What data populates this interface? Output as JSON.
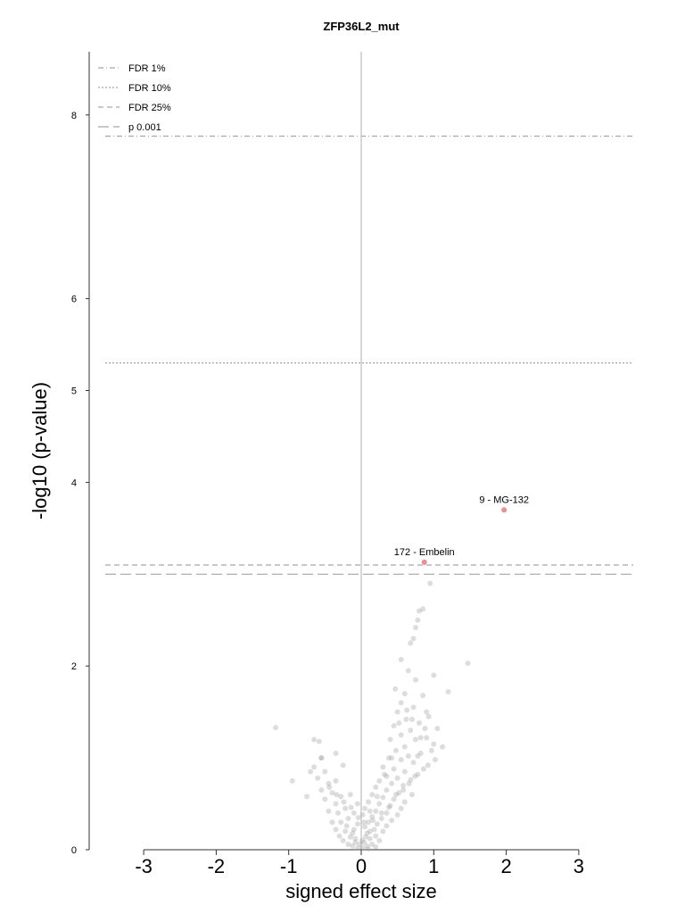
{
  "chart_data": {
    "type": "scatter",
    "title": "ZFP36L2_mut",
    "xlabel": "signed effect size",
    "ylabel": "-log10 (p-value)",
    "xlim": [
      -3.0,
      3.0
    ],
    "ylim": [
      0,
      8
    ],
    "xticks": [
      "-3",
      "-2",
      "-1",
      "0",
      "1",
      "2",
      "3"
    ],
    "yticks": [
      "0",
      "2",
      "4",
      "5",
      "6",
      "8"
    ],
    "x_tick_values": [
      -3,
      -2,
      -1,
      0,
      1,
      2,
      3
    ],
    "y_tick_values": [
      0,
      2,
      4,
      5,
      6,
      8
    ],
    "colors": {
      "points": "#9e9e9e",
      "highlight": "#f08080",
      "threshold_lines": "#a6a6a6",
      "zero_line": "#cccccc",
      "axis": "#333333"
    },
    "legend": {
      "placement": "top-left",
      "entries": [
        {
          "label": "FDR 1%",
          "style": "dash-dot"
        },
        {
          "label": "FDR 10%",
          "style": "dotted"
        },
        {
          "label": "FDR 25%",
          "style": "dashed"
        },
        {
          "label": "p 0.001",
          "style": "long-dashed"
        }
      ]
    },
    "thresholds": [
      {
        "label": "FDR 1%",
        "y": 7.77,
        "style": "dash-dot"
      },
      {
        "label": "FDR 10%",
        "y": 5.3,
        "style": "dotted"
      },
      {
        "label": "FDR 25%",
        "y": 3.1,
        "style": "dashed"
      },
      {
        "label": "p 0.001",
        "y": 3.0,
        "style": "long-dashed"
      }
    ],
    "highlighted": [
      {
        "label": "9 - MG-132",
        "x": 1.97,
        "y": 3.7
      },
      {
        "label": "172 - Embelin",
        "x": 0.87,
        "y": 3.13
      }
    ],
    "points": [
      [
        0.95,
        2.9
      ],
      [
        0.85,
        2.62
      ],
      [
        0.8,
        2.6
      ],
      [
        0.78,
        2.5
      ],
      [
        0.75,
        2.42
      ],
      [
        0.72,
        2.3
      ],
      [
        0.68,
        2.25
      ],
      [
        1.47,
        2.03
      ],
      [
        0.55,
        2.07
      ],
      [
        0.65,
        1.95
      ],
      [
        0.75,
        1.85
      ],
      [
        1.0,
        1.9
      ],
      [
        1.2,
        1.72
      ],
      [
        0.47,
        1.75
      ],
      [
        0.6,
        1.7
      ],
      [
        0.85,
        1.68
      ],
      [
        0.55,
        1.6
      ],
      [
        0.72,
        1.55
      ],
      [
        0.9,
        1.5
      ],
      [
        0.5,
        1.5
      ],
      [
        0.62,
        1.42
      ],
      [
        0.8,
        1.38
      ],
      [
        1.05,
        1.32
      ],
      [
        0.45,
        1.35
      ],
      [
        0.68,
        1.3
      ],
      [
        0.55,
        1.25
      ],
      [
        0.9,
        1.22
      ],
      [
        0.75,
        1.2
      ],
      [
        1.0,
        1.15
      ],
      [
        0.4,
        1.2
      ],
      [
        0.6,
        1.12
      ],
      [
        0.48,
        1.08
      ],
      [
        0.82,
        1.05
      ],
      [
        0.65,
        1.02
      ],
      [
        0.38,
        1.0
      ],
      [
        0.55,
        0.98
      ],
      [
        0.72,
        0.95
      ],
      [
        0.92,
        0.92
      ],
      [
        0.3,
        0.9
      ],
      [
        0.45,
        0.88
      ],
      [
        0.6,
        0.85
      ],
      [
        0.78,
        0.82
      ],
      [
        0.35,
        0.8
      ],
      [
        0.5,
        0.78
      ],
      [
        0.68,
        0.76
      ],
      [
        0.25,
        0.75
      ],
      [
        0.42,
        0.72
      ],
      [
        0.58,
        0.7
      ],
      [
        0.2,
        0.68
      ],
      [
        0.35,
        0.65
      ],
      [
        0.52,
        0.62
      ],
      [
        0.7,
        0.6
      ],
      [
        0.15,
        0.6
      ],
      [
        0.3,
        0.57
      ],
      [
        0.45,
        0.55
      ],
      [
        0.6,
        0.52
      ],
      [
        0.1,
        0.52
      ],
      [
        0.25,
        0.5
      ],
      [
        0.4,
        0.48
      ],
      [
        0.55,
        0.45
      ],
      [
        0.05,
        0.45
      ],
      [
        0.2,
        0.42
      ],
      [
        0.35,
        0.4
      ],
      [
        0.5,
        0.38
      ],
      [
        0.02,
        0.38
      ],
      [
        0.15,
        0.36
      ],
      [
        0.28,
        0.34
      ],
      [
        0.42,
        0.32
      ],
      [
        0.1,
        0.3
      ],
      [
        0.22,
        0.28
      ],
      [
        0.35,
        0.26
      ],
      [
        0.05,
        0.25
      ],
      [
        0.18,
        0.22
      ],
      [
        0.3,
        0.2
      ],
      [
        0.08,
        0.18
      ],
      [
        0.2,
        0.15
      ],
      [
        0.12,
        0.12
      ],
      [
        0.25,
        0.1
      ],
      [
        0.04,
        0.08
      ],
      [
        0.15,
        0.06
      ],
      [
        0.08,
        0.04
      ],
      [
        0.2,
        0.03
      ],
      [
        0.1,
        0.01
      ],
      [
        0.02,
        0.02
      ],
      [
        -0.05,
        0.02
      ],
      [
        -0.12,
        0.04
      ],
      [
        -0.08,
        0.08
      ],
      [
        -0.18,
        0.06
      ],
      [
        -0.25,
        0.1
      ],
      [
        -0.15,
        0.14
      ],
      [
        -0.3,
        0.15
      ],
      [
        -0.22,
        0.2
      ],
      [
        -0.1,
        0.22
      ],
      [
        -0.35,
        0.22
      ],
      [
        -0.05,
        0.28
      ],
      [
        -0.28,
        0.3
      ],
      [
        -0.4,
        0.3
      ],
      [
        -0.18,
        0.34
      ],
      [
        -0.1,
        0.4
      ],
      [
        -0.32,
        0.4
      ],
      [
        -0.45,
        0.42
      ],
      [
        -0.22,
        0.45
      ],
      [
        -0.35,
        0.5
      ],
      [
        -0.05,
        0.5
      ],
      [
        -0.5,
        0.55
      ],
      [
        -0.28,
        0.58
      ],
      [
        -0.15,
        0.6
      ],
      [
        -0.4,
        0.62
      ],
      [
        -0.55,
        0.65
      ],
      [
        -0.45,
        0.72
      ],
      [
        -0.6,
        0.78
      ],
      [
        -0.35,
        0.75
      ],
      [
        -0.5,
        0.85
      ],
      [
        -0.7,
        0.85
      ],
      [
        -0.65,
        0.9
      ],
      [
        -0.25,
        0.92
      ],
      [
        -0.55,
        1.0
      ],
      [
        -0.35,
        1.05
      ],
      [
        -0.65,
        1.2
      ],
      [
        -0.58,
        1.18
      ],
      [
        -0.95,
        0.75
      ],
      [
        -0.75,
        0.58
      ],
      [
        -0.55,
        1.0
      ],
      [
        -1.18,
        1.33
      ],
      [
        -0.08,
        0.12
      ],
      [
        -0.02,
        0.06
      ],
      [
        0.01,
        0.1
      ],
      [
        -0.12,
        0.18
      ],
      [
        0.06,
        0.14
      ],
      [
        0.12,
        0.2
      ],
      [
        -0.2,
        0.26
      ],
      [
        0.16,
        0.32
      ],
      [
        0.28,
        0.4
      ],
      [
        0.38,
        0.46
      ],
      [
        0.48,
        0.6
      ],
      [
        0.58,
        0.65
      ],
      [
        0.66,
        0.72
      ],
      [
        0.74,
        0.8
      ],
      [
        0.86,
        0.88
      ],
      [
        0.97,
        1.08
      ],
      [
        1.02,
        0.98
      ],
      [
        1.12,
        1.12
      ],
      [
        0.78,
        1.02
      ],
      [
        0.82,
        1.22
      ],
      [
        0.88,
        1.32
      ],
      [
        0.93,
        1.45
      ],
      [
        0.7,
        1.42
      ],
      [
        0.63,
        1.52
      ],
      [
        0.52,
        1.38
      ],
      [
        0.42,
        1.0
      ],
      [
        0.32,
        0.82
      ],
      [
        0.22,
        0.58
      ],
      [
        0.12,
        0.42
      ],
      [
        0.04,
        0.3
      ],
      [
        -0.04,
        0.35
      ],
      [
        -0.14,
        0.46
      ],
      [
        -0.24,
        0.52
      ],
      [
        -0.34,
        0.6
      ],
      [
        -0.44,
        0.68
      ]
    ]
  }
}
